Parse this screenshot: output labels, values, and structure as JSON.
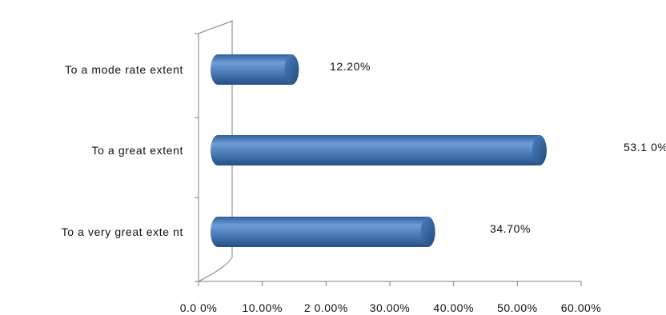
{
  "chart_data": {
    "type": "bar",
    "orientation": "horizontal",
    "style": "3d-cylinder",
    "categories": [
      "To a mode rate extent",
      "To a great extent",
      "To a very great exte nt"
    ],
    "values": [
      12.2,
      53.1,
      34.7
    ],
    "data_labels": [
      "12.20%",
      "53.1 0%",
      "34.70%"
    ],
    "xlim": [
      0,
      60
    ],
    "x_ticks": [
      0,
      10,
      20,
      30,
      40,
      50,
      60
    ],
    "x_tick_labels": [
      "0.0 0%",
      "10.00%",
      "2 0.00%",
      "30.00%",
      "40.00%",
      "50.00%",
      "60.00%"
    ],
    "title": "",
    "xlabel": "",
    "ylabel": "",
    "grid": false,
    "legend": "none",
    "colors": {
      "bar": "#4f81bd",
      "bar_dark": "#2e5c96",
      "bar_light": "#8db3e2",
      "axis": "#7f7f7f"
    }
  }
}
